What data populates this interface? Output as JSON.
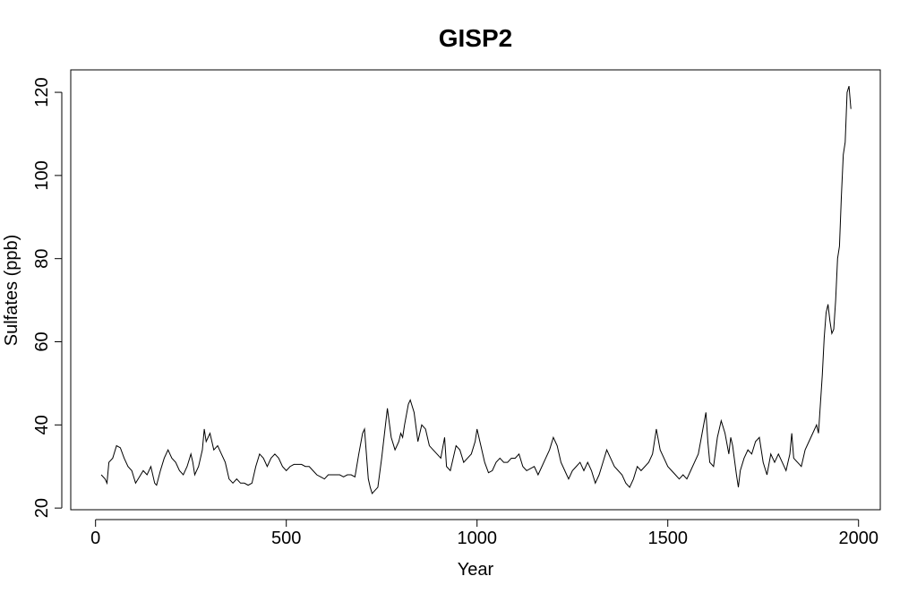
{
  "chart_data": {
    "type": "line",
    "title": "GISP2",
    "x_label": "Year",
    "y_label": "Sulfates (ppb)",
    "color": "#000000",
    "x": [
      15,
      25,
      30,
      35,
      45,
      55,
      65,
      75,
      85,
      95,
      105,
      115,
      125,
      135,
      145,
      155,
      160,
      170,
      180,
      190,
      200,
      210,
      220,
      230,
      240,
      250,
      255,
      260,
      270,
      280,
      285,
      290,
      300,
      310,
      320,
      330,
      340,
      350,
      360,
      370,
      380,
      390,
      400,
      410,
      420,
      430,
      440,
      450,
      460,
      470,
      480,
      490,
      500,
      510,
      520,
      530,
      540,
      550,
      560,
      570,
      580,
      590,
      600,
      610,
      620,
      630,
      640,
      650,
      660,
      670,
      680,
      690,
      700,
      705,
      710,
      715,
      720,
      725,
      730,
      740,
      750,
      760,
      765,
      775,
      785,
      795,
      800,
      805,
      810,
      820,
      825,
      835,
      845,
      855,
      865,
      875,
      885,
      895,
      905,
      915,
      920,
      930,
      940,
      945,
      955,
      965,
      975,
      985,
      995,
      1000,
      1010,
      1020,
      1030,
      1040,
      1050,
      1060,
      1070,
      1080,
      1090,
      1100,
      1110,
      1120,
      1130,
      1140,
      1150,
      1160,
      1170,
      1180,
      1190,
      1200,
      1210,
      1220,
      1230,
      1240,
      1250,
      1260,
      1270,
      1280,
      1290,
      1300,
      1310,
      1320,
      1330,
      1340,
      1350,
      1360,
      1370,
      1380,
      1390,
      1400,
      1410,
      1420,
      1430,
      1440,
      1450,
      1460,
      1470,
      1480,
      1490,
      1500,
      1510,
      1520,
      1530,
      1540,
      1550,
      1560,
      1570,
      1580,
      1590,
      1600,
      1605,
      1610,
      1620,
      1630,
      1640,
      1650,
      1660,
      1665,
      1670,
      1680,
      1685,
      1690,
      1700,
      1710,
      1720,
      1730,
      1740,
      1750,
      1760,
      1770,
      1780,
      1790,
      1800,
      1810,
      1820,
      1825,
      1830,
      1840,
      1850,
      1860,
      1870,
      1880,
      1890,
      1895,
      1900,
      1905,
      1910,
      1915,
      1920,
      1925,
      1930,
      1935,
      1940,
      1945,
      1950,
      1955,
      1960,
      1965,
      1970,
      1975,
      1980
    ],
    "values": [
      28,
      27,
      26,
      31,
      32,
      35,
      34.5,
      32,
      30,
      29,
      26,
      27.5,
      29,
      28,
      30,
      26,
      25.5,
      29,
      32,
      34,
      32,
      31,
      29,
      28,
      30,
      33,
      31,
      28,
      30,
      34,
      39,
      36,
      38,
      34,
      35,
      33,
      31,
      27,
      26,
      27,
      26,
      26,
      25.5,
      26,
      30,
      33,
      32,
      30,
      32,
      33,
      32,
      30,
      29,
      30,
      30.5,
      30.5,
      30.5,
      30,
      30,
      29,
      28,
      27.5,
      27,
      28,
      28,
      28,
      28,
      27.5,
      28,
      28,
      27.5,
      33,
      38,
      39,
      33,
      27,
      25,
      23.5,
      24,
      25,
      32,
      40,
      44,
      37,
      34,
      36,
      38,
      37,
      40,
      45,
      46,
      43,
      36,
      40,
      39,
      35,
      34,
      33,
      32,
      37,
      30,
      29,
      33,
      35,
      34,
      31,
      32,
      33,
      36,
      39,
      35,
      31,
      28.5,
      29,
      31,
      32,
      31,
      31,
      32,
      32,
      33,
      30,
      29,
      29.5,
      30,
      28,
      30,
      32,
      34,
      37,
      35,
      31,
      29,
      27,
      29,
      30,
      31,
      29,
      31,
      29,
      26,
      28,
      31,
      34,
      32,
      30,
      29,
      28,
      26,
      25,
      27,
      30,
      29,
      30,
      31,
      33,
      39,
      34,
      32,
      30,
      29,
      28,
      27,
      28,
      27,
      29,
      31,
      33,
      38,
      43,
      36,
      31,
      30,
      37,
      41,
      38,
      33,
      37,
      35,
      28,
      25,
      29,
      32,
      34,
      33,
      36,
      37,
      31,
      28,
      33,
      31,
      33,
      31,
      29,
      33,
      38,
      32,
      31,
      30,
      34,
      36,
      38,
      40,
      38,
      45,
      52,
      61,
      67,
      69,
      65,
      62,
      63,
      70,
      80,
      83,
      95,
      105,
      108,
      120,
      121.5,
      116
    ],
    "xlim": [
      -65,
      2057
    ],
    "ylim": [
      19.6,
      125.4
    ],
    "xticks": [
      0,
      500,
      1000,
      1500,
      2000
    ],
    "yticks": [
      20,
      40,
      60,
      80,
      100,
      120
    ]
  }
}
